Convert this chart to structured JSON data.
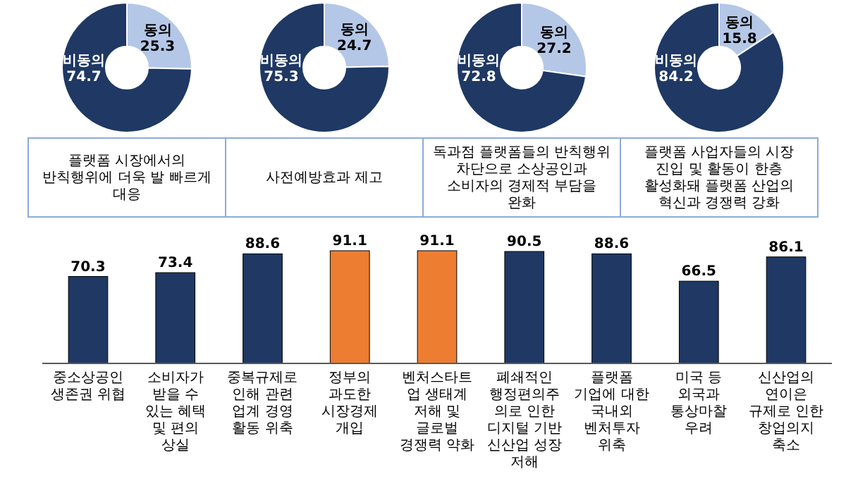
{
  "chart_data": [
    {
      "type": "donut",
      "categories": [
        "동의",
        "비동의"
      ],
      "values": [
        25.3,
        74.7
      ],
      "colors": [
        "#b4c7e7",
        "#1f3864"
      ],
      "data_labels": true,
      "annotations": [
        "플랫폼 시장에서의 반칙행위에 더욱 발 빠르게 대응"
      ]
    },
    {
      "type": "donut",
      "categories": [
        "동의",
        "비동의"
      ],
      "values": [
        24.7,
        75.3
      ],
      "colors": [
        "#b4c7e7",
        "#1f3864"
      ],
      "data_labels": true,
      "annotations": [
        "사전예방효과 제고"
      ]
    },
    {
      "type": "donut",
      "categories": [
        "동의",
        "비동의"
      ],
      "values": [
        27.2,
        72.8
      ],
      "colors": [
        "#b4c7e7",
        "#1f3864"
      ],
      "data_labels": true,
      "annotations": [
        "독과점 플랫폼들의 반칙행위 차단으로 소상공인과 소비자의 경제적 부담을 완화"
      ]
    },
    {
      "type": "donut",
      "categories": [
        "동의",
        "비동의"
      ],
      "values": [
        15.8,
        84.2
      ],
      "colors": [
        "#b4c7e7",
        "#1f3864"
      ],
      "data_labels": true,
      "annotations": [
        "플랫폼 사업자들의 시장 진입 및 활동이 한층 활성화돼 플랫폼 산업의 혁신과 경쟁력 강화"
      ]
    },
    {
      "type": "bar",
      "categories": [
        "중소상공인 생존권 위협",
        "소비자가 받을 수 있는 혜택 및 편의 상실",
        "중복규제로 인해 관련 업계 경영 활동 위축",
        "정부의 과도한 시장경제 개입",
        "벤처스타트업 생태계 저해 및 글로벌 경쟁력 약화",
        "폐쇄적인 행정편의주의로 인한 디지털 기반 신산업 성장 저해",
        "플랫폼 기업에 대한 국내외 벤처투자 위축",
        "미국 등 외국과 통상마찰 우려",
        "신산업의 연이은 규제로 인한 창업의지 축소"
      ],
      "values": [
        70.3,
        73.4,
        88.6,
        91.1,
        91.1,
        90.5,
        88.6,
        66.5,
        86.1
      ],
      "colors": [
        "#1f3864",
        "#1f3864",
        "#1f3864",
        "#ed7d31",
        "#ed7d31",
        "#1f3864",
        "#1f3864",
        "#1f3864",
        "#1f3864"
      ],
      "data_labels": true
    }
  ]
}
